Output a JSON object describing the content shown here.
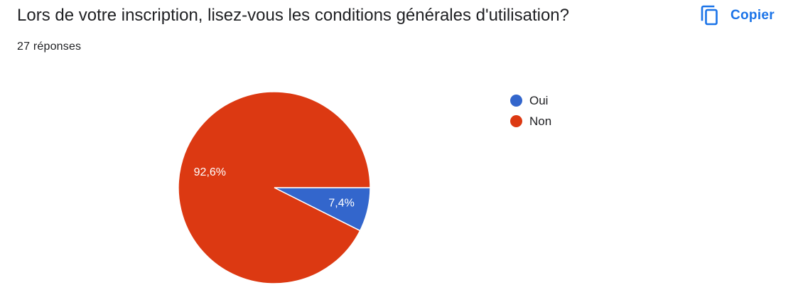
{
  "question": {
    "title": "Lors de votre inscription, lisez-vous les conditions générales d'utilisation?",
    "responses": "27 réponses"
  },
  "toolbar": {
    "copy_label": "Copier",
    "copy_icon": "copy-icon"
  },
  "colors": {
    "accent": "#1a73e8",
    "oui": "#3366cc",
    "non": "#dc3912"
  },
  "chart_data": {
    "type": "pie",
    "categories": [
      "Oui",
      "Non"
    ],
    "values": [
      7.4,
      92.6
    ],
    "data_labels": [
      "7,4%",
      "92,6%"
    ],
    "colors": [
      "#3366cc",
      "#dc3912"
    ],
    "legend_position": "right"
  }
}
